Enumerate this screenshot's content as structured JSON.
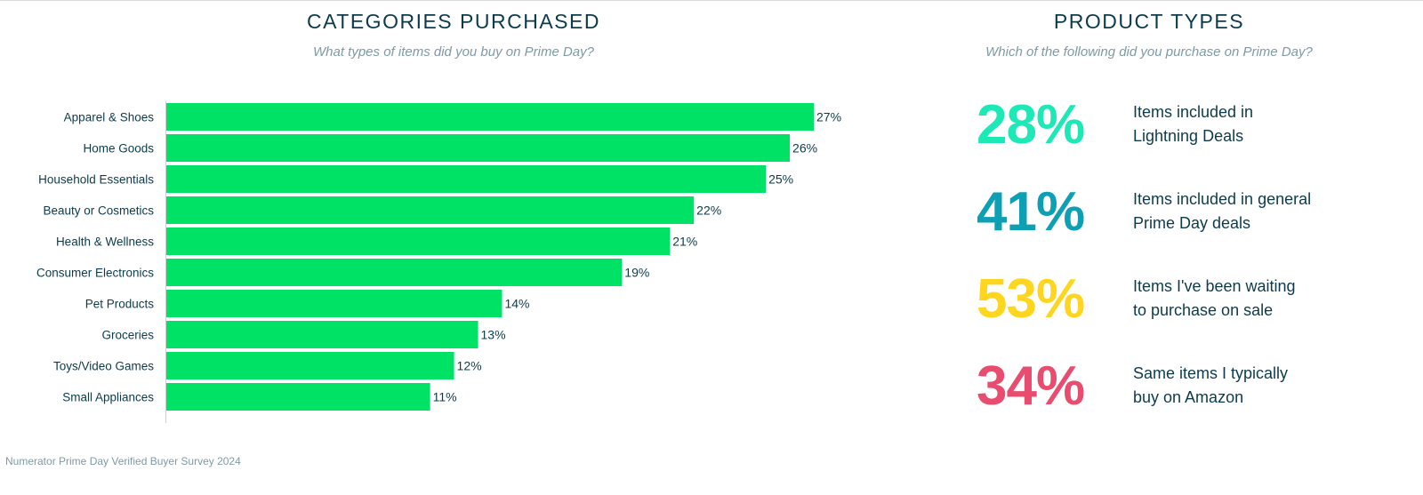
{
  "left_panel": {
    "title": "CATEGORIES PURCHASED",
    "subtitle": "What types of items did you buy on Prime Day?"
  },
  "right_panel": {
    "title": "PRODUCT TYPES",
    "subtitle": "Which of the following did you purchase on Prime Day?",
    "stats": [
      {
        "value": "28%",
        "line1": "Items included in",
        "line2": "Lightning Deals",
        "color": "#1de9b6"
      },
      {
        "value": "41%",
        "line1": "Items included in general",
        "line2": "Prime Day deals",
        "color": "#0d9fb3"
      },
      {
        "value": "53%",
        "line1": "Items I've been waiting",
        "line2": "to purchase on sale",
        "color": "#ffd61f"
      },
      {
        "value": "34%",
        "line1": "Same items I typically",
        "line2": "buy on Amazon",
        "color": "#e84d6f"
      }
    ]
  },
  "footer": {
    "source": "Numerator Prime Day Verified Buyer Survey 2024"
  },
  "chart_data": {
    "type": "bar",
    "orientation": "horizontal",
    "title": "CATEGORIES PURCHASED",
    "subtitle": "What types of items did you buy on Prime Day?",
    "categories": [
      "Apparel & Shoes",
      "Home Goods",
      "Household Essentials",
      "Beauty or Cosmetics",
      "Health & Wellness",
      "Consumer Electronics",
      "Pet Products",
      "Groceries",
      "Toys/Video Games",
      "Small Appliances"
    ],
    "values": [
      27,
      26,
      25,
      22,
      21,
      19,
      14,
      13,
      12,
      11
    ],
    "value_labels": [
      "27%",
      "26%",
      "25%",
      "22%",
      "21%",
      "19%",
      "14%",
      "13%",
      "12%",
      "11%"
    ],
    "unit": "%",
    "xlim": [
      0,
      27
    ],
    "bar_color": "#00e266",
    "grid": false
  }
}
